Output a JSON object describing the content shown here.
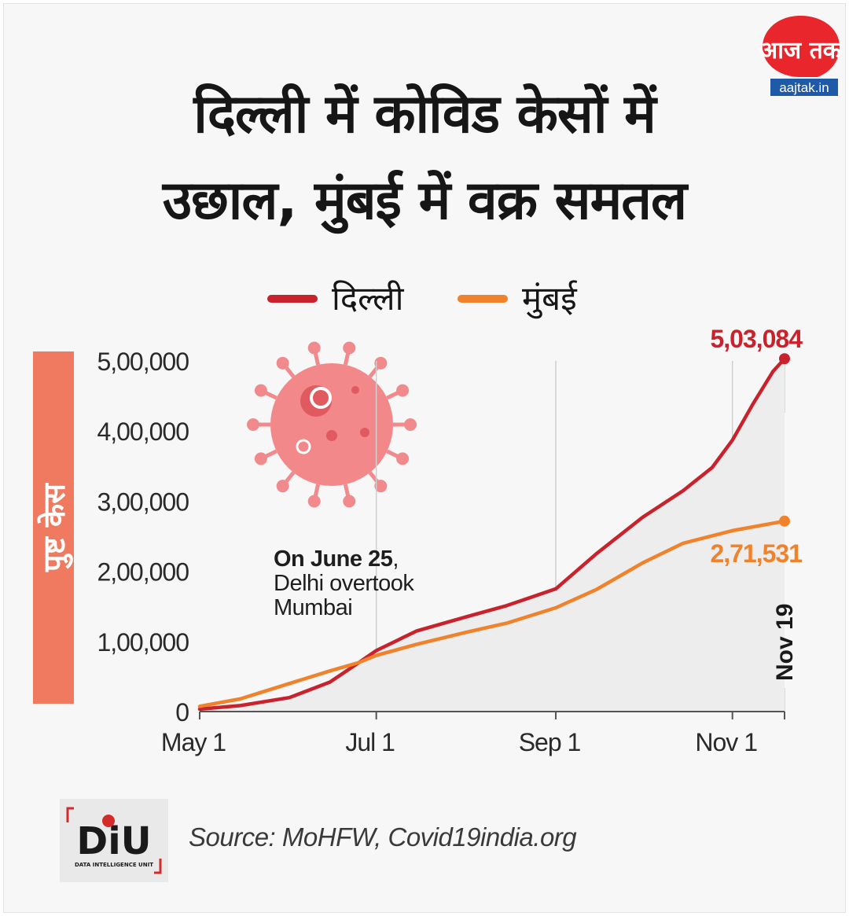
{
  "header": {
    "title_line1": "दिल्ली में कोविड केसों में",
    "title_line2": "उछाल, मुंबई में वक्र समतल"
  },
  "logo": {
    "text": "आज तक",
    "domain": "aajtak.in",
    "color": "#e8262b"
  },
  "footer": {
    "source": "Source: MoHFW, Covid19india.org",
    "diu_logo_text": "DiU",
    "diu_subtitle": "DATA INTELLIGENCE UNIT"
  },
  "chart_data": {
    "type": "line",
    "xlabel": "",
    "ylabel": "पुष्ट केस",
    "ylim": [
      0,
      500000
    ],
    "yticks": [
      0,
      100000,
      200000,
      300000,
      400000,
      500000
    ],
    "ytick_labels": [
      "0",
      "1,00,000",
      "2,00,000",
      "3,00,000",
      "4,00,000",
      "5,00,000"
    ],
    "xticks": [
      "2020-05-01",
      "2020-07-01",
      "2020-09-01",
      "2020-11-01",
      "2020-11-19"
    ],
    "xtick_labels": [
      "May 1",
      "Jul 1",
      "Sep 1",
      "Nov 1",
      "Nov 19"
    ],
    "xlim": [
      "2020-05-01",
      "2020-11-19"
    ],
    "grid": "vertical",
    "legend_position": "top-center",
    "series": [
      {
        "name": "दिल्ली",
        "color": "#c8232c",
        "end_label": "5,03,084",
        "points": [
          [
            "2020-05-01",
            3500
          ],
          [
            "2020-05-15",
            8500
          ],
          [
            "2020-06-01",
            20000
          ],
          [
            "2020-06-15",
            42000
          ],
          [
            "2020-06-25",
            70000
          ],
          [
            "2020-07-01",
            87000
          ],
          [
            "2020-07-15",
            115000
          ],
          [
            "2020-08-01",
            135000
          ],
          [
            "2020-08-15",
            151000
          ],
          [
            "2020-09-01",
            175000
          ],
          [
            "2020-09-15",
            225000
          ],
          [
            "2020-10-01",
            277000
          ],
          [
            "2020-10-15",
            315000
          ],
          [
            "2020-10-25",
            348000
          ],
          [
            "2020-11-01",
            387000
          ],
          [
            "2020-11-08",
            438000
          ],
          [
            "2020-11-15",
            485000
          ],
          [
            "2020-11-19",
            503084
          ]
        ]
      },
      {
        "name": "मुंबई",
        "color": "#f0822c",
        "end_label": "2,71,531",
        "points": [
          [
            "2020-05-01",
            7500
          ],
          [
            "2020-05-15",
            18000
          ],
          [
            "2020-06-01",
            40000
          ],
          [
            "2020-06-15",
            58000
          ],
          [
            "2020-06-25",
            70000
          ],
          [
            "2020-07-01",
            80000
          ],
          [
            "2020-07-15",
            96000
          ],
          [
            "2020-08-01",
            113000
          ],
          [
            "2020-08-15",
            126000
          ],
          [
            "2020-09-01",
            148000
          ],
          [
            "2020-09-15",
            174000
          ],
          [
            "2020-10-01",
            212000
          ],
          [
            "2020-10-15",
            240000
          ],
          [
            "2020-11-01",
            258000
          ],
          [
            "2020-11-19",
            271531
          ]
        ]
      }
    ],
    "annotations": [
      {
        "bold": "On June 25",
        "text_after_bold": ",",
        "line2": "Delhi overtook",
        "line3": "Mumbai"
      }
    ]
  }
}
